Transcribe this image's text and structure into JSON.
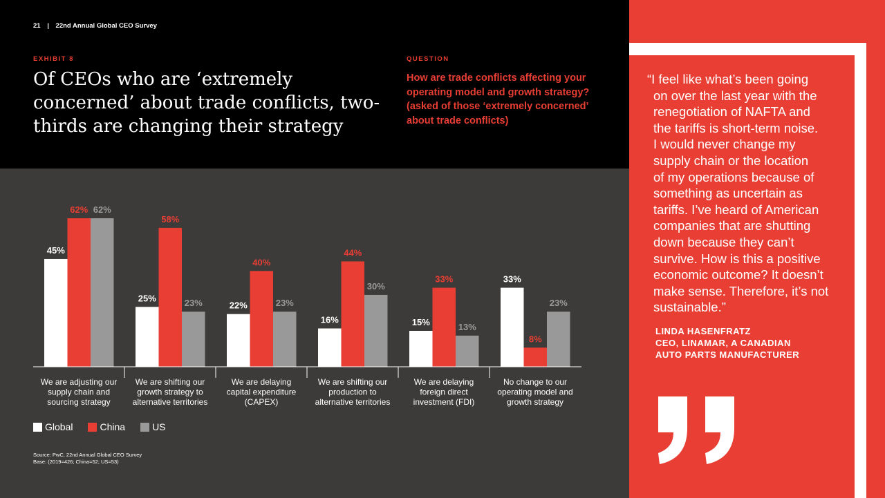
{
  "header": {
    "page_number": "21",
    "separator": "|",
    "report_title": "22nd Annual Global CEO Survey"
  },
  "exhibit": {
    "label": "EXHIBIT 8",
    "title": "Of CEOs who are ‘extremely concerned’ about trade conflicts, two-thirds are changing their strategy"
  },
  "question": {
    "label": "QUESTION",
    "text": "How are trade conflicts affecting your operating model and growth strategy? (asked of those ‘extremely concerned’ about trade conflicts)"
  },
  "quote": {
    "lines": [
      "“I feel like what’s been going",
      "on over the last year with the",
      "renegotiation of NAFTA and",
      "the tariffs is short-term noise.",
      "I would never change my",
      "supply chain or the location",
      "of my operations because of",
      "something as uncertain as",
      "tariffs. I’ve heard of American",
      "companies that are shutting",
      "down because they can’t",
      "survive. How is this a positive",
      "economic outcome? It doesn’t",
      "make sense. Therefore, it’s not",
      "sustainable.”"
    ],
    "attribution": [
      "LINDA HASENFRATZ",
      "CEO, LINAMAR, A CANADIAN",
      "AUTO PARTS MANUFACTURER"
    ],
    "quote_mark_icon": "closing-quote-mark"
  },
  "colors": {
    "accent_red": "#e83e33",
    "global": "#ffffff",
    "china": "#e83e33",
    "us": "#999999",
    "chart_bg": "#3c3b3a",
    "label_us": "#9a9a9a"
  },
  "chart_data": {
    "type": "bar",
    "categories": [
      [
        "We are adjusting our",
        "supply chain and",
        "sourcing strategy"
      ],
      [
        "We are shifting our",
        "growth strategy to",
        "alternative territories"
      ],
      [
        "We are delaying",
        "capital expenditure",
        "(CAPEX)"
      ],
      [
        "We are shifting our",
        "production to",
        "alternative territories"
      ],
      [
        "We are delaying",
        "foreign direct",
        "investment (FDI)"
      ],
      [
        "No change to our",
        "operating model and",
        "growth strategy"
      ]
    ],
    "series": [
      {
        "name": "Global",
        "color": "#ffffff",
        "label_color": "#ffffff",
        "values": [
          45,
          25,
          22,
          16,
          15,
          33
        ]
      },
      {
        "name": "China",
        "color": "#e83e33",
        "label_color": "#e83e33",
        "values": [
          62,
          58,
          40,
          44,
          33,
          8
        ]
      },
      {
        "name": "US",
        "color": "#999999",
        "label_color": "#9a9a9a",
        "values": [
          62,
          23,
          23,
          30,
          13,
          23
        ]
      }
    ],
    "value_suffix": "%",
    "ylim": [
      0,
      62
    ],
    "title": "",
    "xlabel": "",
    "ylabel": "",
    "grid": false,
    "legend_position": "bottom-left"
  },
  "source": {
    "line1": "Source: PwC, 22nd Annual Global CEO Survey",
    "line2": "Base: (2019=426; China=52; US=53)"
  }
}
